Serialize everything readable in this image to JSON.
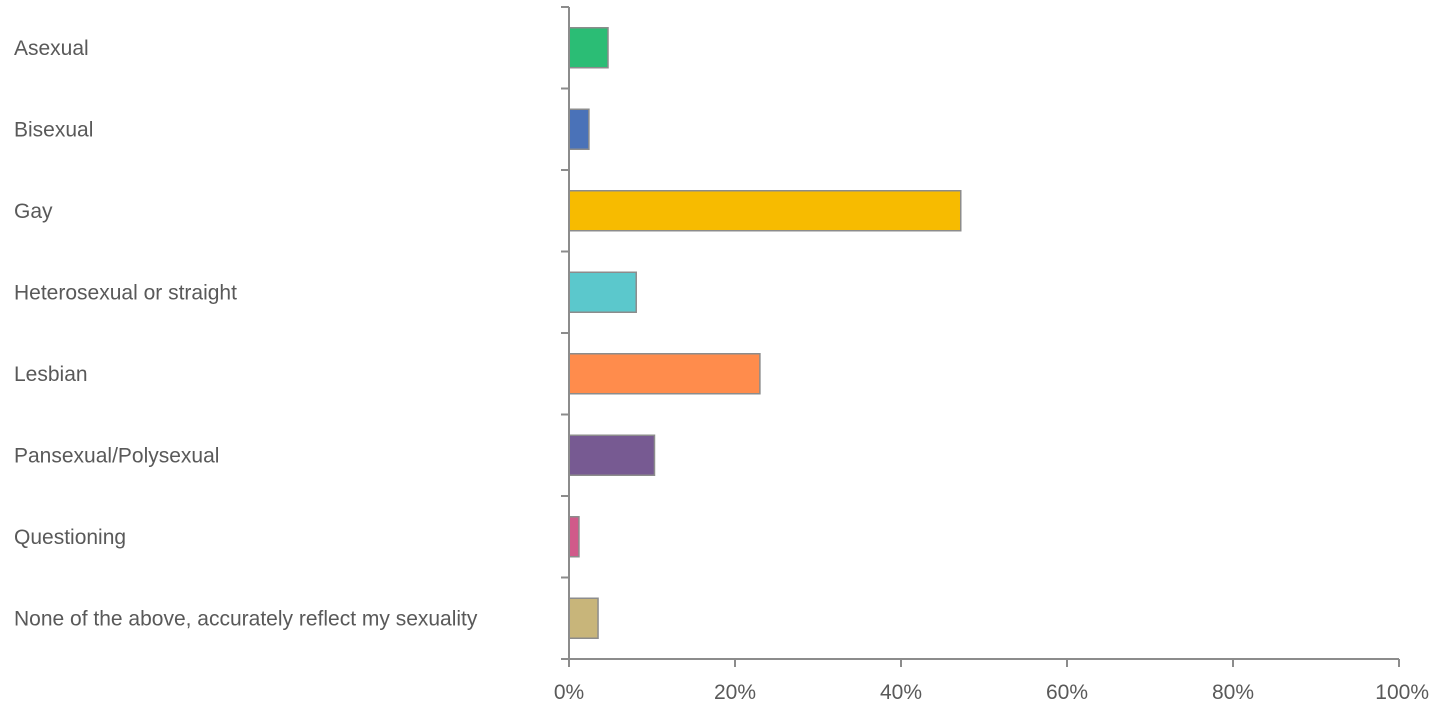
{
  "chart_data": {
    "type": "bar",
    "orientation": "horizontal",
    "title": "",
    "xlabel": "",
    "ylabel": "",
    "categories": [
      "Asexual",
      "Bisexual",
      "Gay",
      "Heterosexual or straight",
      "Lesbian",
      "Pansexual/Polysexual",
      "Questioning",
      "None of the above, accurately reflect my sexuality"
    ],
    "values": [
      4.7,
      2.4,
      47.2,
      8.1,
      23.0,
      10.3,
      1.2,
      3.5
    ],
    "value_unit": "%",
    "colors": [
      "#2bbd75",
      "#4a72b8",
      "#f7bb00",
      "#5bc8cc",
      "#ff8c4c",
      "#775a92",
      "#d05a8a",
      "#c8b57a"
    ],
    "bar_border_color": "#8c8c8c",
    "xlim": [
      0,
      100
    ],
    "x_ticks": [
      0,
      20,
      40,
      60,
      80,
      100
    ],
    "x_tick_labels": [
      "0%",
      "20%",
      "40%",
      "60%",
      "80%",
      "100%"
    ],
    "grid": false,
    "legend": "none"
  }
}
